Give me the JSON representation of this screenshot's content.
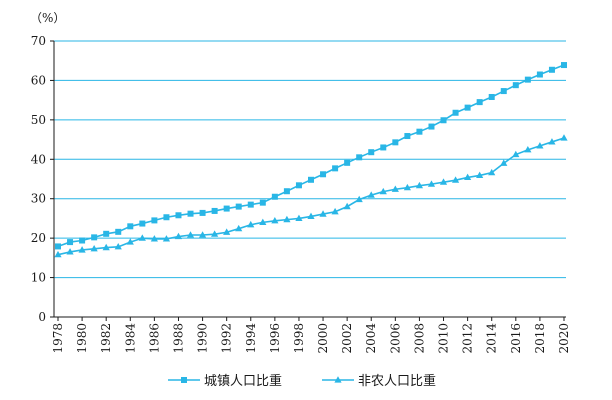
{
  "chart_data": {
    "type": "line",
    "title": "",
    "xlabel": "",
    "ylabel": "（%）",
    "ylim": [
      0,
      70
    ],
    "yticks": [
      0,
      10,
      20,
      30,
      40,
      50,
      60,
      70
    ],
    "xlim": [
      1978,
      2020
    ],
    "xticks": [
      1978,
      1980,
      1982,
      1984,
      1986,
      1988,
      1990,
      1992,
      1994,
      1996,
      1998,
      2000,
      2002,
      2004,
      2006,
      2008,
      2010,
      2012,
      2014,
      2016,
      2018,
      2020
    ],
    "grid": "horizontal",
    "legend_position": "bottom",
    "color": "#29b6e6",
    "x": [
      1978,
      1979,
      1980,
      1981,
      1982,
      1983,
      1984,
      1985,
      1986,
      1987,
      1988,
      1989,
      1990,
      1991,
      1992,
      1993,
      1994,
      1995,
      1996,
      1997,
      1998,
      1999,
      2000,
      2001,
      2002,
      2003,
      2004,
      2005,
      2006,
      2007,
      2008,
      2009,
      2010,
      2011,
      2012,
      2013,
      2014,
      2015,
      2016,
      2017,
      2018,
      2019,
      2020
    ],
    "series": [
      {
        "name": "城镇人口比重",
        "marker": "square",
        "values": [
          17.9,
          19.0,
          19.4,
          20.2,
          21.1,
          21.6,
          23.0,
          23.7,
          24.5,
          25.3,
          25.8,
          26.2,
          26.4,
          26.9,
          27.5,
          28.0,
          28.5,
          29.0,
          30.5,
          31.9,
          33.4,
          34.8,
          36.2,
          37.7,
          39.1,
          40.5,
          41.8,
          43.0,
          44.3,
          45.9,
          47.0,
          48.3,
          49.9,
          51.8,
          53.1,
          54.5,
          55.8,
          57.3,
          58.8,
          60.2,
          61.5,
          62.7,
          63.9
        ]
      },
      {
        "name": "非农人口比重",
        "marker": "triangle",
        "values": [
          15.8,
          16.5,
          17.0,
          17.3,
          17.6,
          17.8,
          19.0,
          20.0,
          19.8,
          19.8,
          20.4,
          20.8,
          20.8,
          21.0,
          21.5,
          22.4,
          23.4,
          24.0,
          24.4,
          24.7,
          25.0,
          25.5,
          26.1,
          26.7,
          28.0,
          29.8,
          30.9,
          31.8,
          32.4,
          32.8,
          33.3,
          33.7,
          34.2,
          34.7,
          35.4,
          35.9,
          36.6,
          39.0,
          41.2,
          42.4,
          43.4,
          44.4,
          45.4
        ]
      }
    ]
  }
}
